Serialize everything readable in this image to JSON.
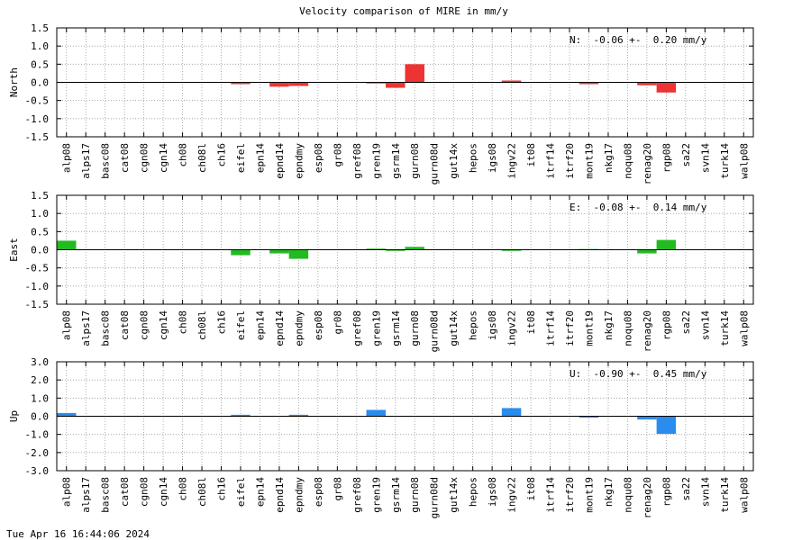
{
  "title": "Velocity comparison of MIRE in mm/y",
  "footer": "Tue Apr 16 16:44:06 2024",
  "colors": {
    "north": "#ee3333",
    "east": "#22bb22",
    "up": "#2b8cf0"
  },
  "chart_data": [
    {
      "type": "bar",
      "ylabel": "North",
      "ylim": [
        -1.5,
        1.5
      ],
      "yticks": [
        "-1.5",
        "-1.0",
        "-0.5",
        "0.0",
        "0.5",
        "1.0",
        "1.5"
      ],
      "stat_label": "N:  -0.06 +-  0.20 mm/y",
      "grid": true,
      "categories": [
        "alp08",
        "alps17",
        "basc08",
        "cat08",
        "cgn08",
        "cgn14",
        "ch08",
        "ch08l",
        "ch16",
        "eifel",
        "epn14",
        "epnd14",
        "epndmy",
        "esp08",
        "gr08",
        "gref08",
        "gren19",
        "gsrm14",
        "gurn08",
        "gurn08d",
        "gut14x",
        "hepos",
        "igs08",
        "ingv22",
        "it08",
        "itrf14",
        "itrf20",
        "mont19",
        "nkg17",
        "noqu08",
        "renag20",
        "rgp08",
        "sa22",
        "svn14",
        "turk14",
        "walp08"
      ],
      "values": [
        null,
        null,
        null,
        null,
        null,
        null,
        null,
        null,
        null,
        -0.05,
        null,
        -0.12,
        -0.1,
        null,
        null,
        null,
        -0.03,
        -0.15,
        0.5,
        null,
        null,
        null,
        null,
        0.05,
        null,
        null,
        null,
        -0.05,
        null,
        null,
        -0.08,
        -0.28,
        null,
        null,
        null,
        null
      ],
      "color": "#ee3333"
    },
    {
      "type": "bar",
      "ylabel": "East",
      "ylim": [
        -1.5,
        1.5
      ],
      "yticks": [
        "-1.5",
        "-1.0",
        "-0.5",
        "0.0",
        "0.5",
        "1.0",
        "1.5"
      ],
      "stat_label": "E:  -0.08 +-  0.14 mm/y",
      "grid": true,
      "categories": [
        "alp08",
        "alps17",
        "basc08",
        "cat08",
        "cgn08",
        "cgn14",
        "ch08",
        "ch08l",
        "ch16",
        "eifel",
        "epn14",
        "epnd14",
        "epndmy",
        "esp08",
        "gr08",
        "gref08",
        "gren19",
        "gsrm14",
        "gurn08",
        "gurn08d",
        "gut14x",
        "hepos",
        "igs08",
        "ingv22",
        "it08",
        "itrf14",
        "itrf20",
        "mont19",
        "nkg17",
        "noqu08",
        "renag20",
        "rgp08",
        "sa22",
        "svn14",
        "turk14",
        "walp08"
      ],
      "values": [
        0.25,
        null,
        null,
        null,
        null,
        null,
        null,
        null,
        null,
        -0.15,
        null,
        -0.1,
        -0.25,
        null,
        null,
        null,
        0.03,
        -0.03,
        0.08,
        null,
        null,
        null,
        null,
        -0.03,
        null,
        null,
        null,
        0.02,
        null,
        null,
        -0.1,
        0.27,
        null,
        null,
        null,
        null
      ],
      "color": "#22bb22"
    },
    {
      "type": "bar",
      "ylabel": "Up",
      "ylim": [
        -3.0,
        3.0
      ],
      "yticks": [
        "-3.0",
        "-2.0",
        "-1.0",
        "0.0",
        "1.0",
        "2.0",
        "3.0"
      ],
      "stat_label": "U:  -0.90 +-  0.45 mm/y",
      "grid": true,
      "categories": [
        "alp08",
        "alps17",
        "basc08",
        "cat08",
        "cgn08",
        "cgn14",
        "ch08",
        "ch08l",
        "ch16",
        "eifel",
        "epn14",
        "epnd14",
        "epndmy",
        "esp08",
        "gr08",
        "gref08",
        "gren19",
        "gsrm14",
        "gurn08",
        "gurn08d",
        "gut14x",
        "hepos",
        "igs08",
        "ingv22",
        "it08",
        "itrf14",
        "itrf20",
        "mont19",
        "nkg17",
        "noqu08",
        "renag20",
        "rgp08",
        "sa22",
        "svn14",
        "turk14",
        "walp08"
      ],
      "values": [
        0.18,
        null,
        null,
        null,
        null,
        null,
        null,
        null,
        null,
        0.08,
        null,
        null,
        0.08,
        null,
        null,
        null,
        0.35,
        null,
        null,
        null,
        null,
        null,
        null,
        0.45,
        null,
        null,
        null,
        -0.08,
        null,
        null,
        -0.18,
        -0.97,
        null,
        null,
        null,
        null
      ],
      "color": "#2b8cf0"
    }
  ]
}
